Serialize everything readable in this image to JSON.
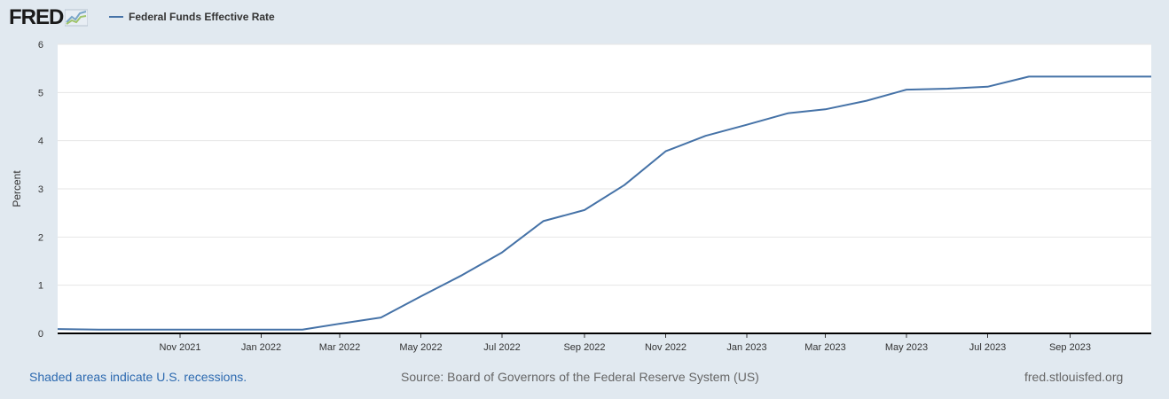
{
  "header": {
    "logo_text": "FRED",
    "logo_icon": "fred-chart-logo-icon"
  },
  "chart_data": {
    "type": "line",
    "title": "",
    "legend_position": "top-left",
    "grid": true,
    "xlabel": "",
    "ylabel": "Percent",
    "ylim": [
      0,
      6
    ],
    "yticks": [
      "0",
      "1",
      "2",
      "3",
      "4",
      "5",
      "6"
    ],
    "xlim": [
      "2021-08-01",
      "2023-11-01"
    ],
    "xticks": [
      "Nov 2021",
      "Jan 2022",
      "Mar 2022",
      "May 2022",
      "Jul 2022",
      "Sep 2022",
      "Nov 2022",
      "Jan 2023",
      "Mar 2023",
      "May 2023",
      "Jul 2023",
      "Sep 2023"
    ],
    "x": [
      "2021-08-01",
      "2021-09-01",
      "2021-10-01",
      "2021-11-01",
      "2021-12-01",
      "2022-01-01",
      "2022-02-01",
      "2022-03-01",
      "2022-04-01",
      "2022-05-01",
      "2022-06-01",
      "2022-07-01",
      "2022-08-01",
      "2022-09-01",
      "2022-10-01",
      "2022-11-01",
      "2022-12-01",
      "2023-01-01",
      "2023-02-01",
      "2023-03-01",
      "2023-04-01",
      "2023-05-01",
      "2023-06-01",
      "2023-07-01",
      "2023-08-01",
      "2023-09-01",
      "2023-10-01",
      "2023-11-01"
    ],
    "series": [
      {
        "name": "Federal Funds Effective Rate",
        "color": "#4572a7",
        "values": [
          0.09,
          0.08,
          0.08,
          0.08,
          0.08,
          0.08,
          0.08,
          0.2,
          0.33,
          0.77,
          1.21,
          1.68,
          2.33,
          2.56,
          3.08,
          3.78,
          4.1,
          4.33,
          4.57,
          4.65,
          4.83,
          5.06,
          5.08,
          5.12,
          5.33,
          5.33,
          5.33,
          5.33
        ]
      }
    ]
  },
  "footer": {
    "recessions": "Shaded areas indicate U.S. recessions.",
    "source": "Source: Board of Governors of the Federal Reserve System (US)",
    "site": "fred.stlouisfed.org"
  }
}
